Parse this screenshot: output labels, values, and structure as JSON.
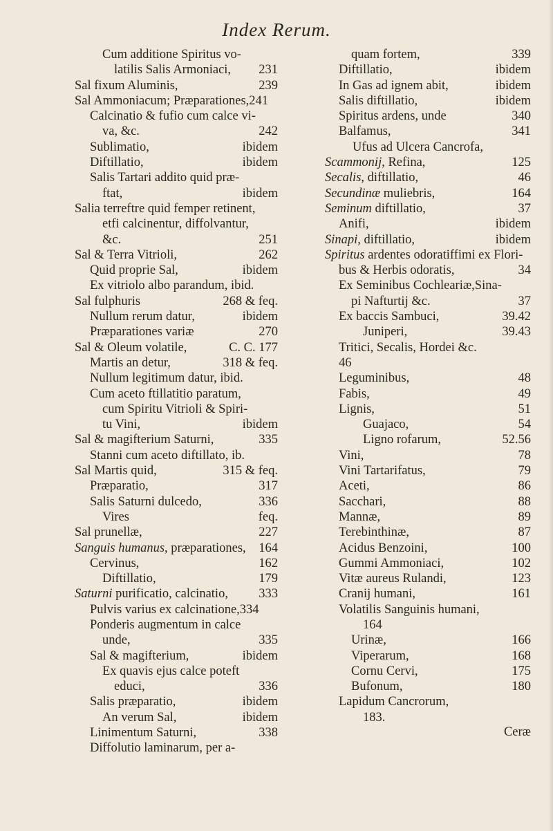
{
  "header": {
    "title": "Index Rerum."
  },
  "left": [
    {
      "t": "Cum additione Spiritus vo-"
    },
    {
      "t": "latilis Salis Armoniaci,",
      "p": "231"
    },
    {
      "t": "Sal fixum Aluminis,",
      "p": "239"
    },
    {
      "t": "Sal Ammoniacum; Præparationes,241"
    },
    {
      "t": "Calcinatio & fufio cum calce vi-"
    },
    {
      "t": "va, &c.",
      "p": "242"
    },
    {
      "t": "Sublimatio,",
      "p": "ibidem"
    },
    {
      "t": "Diftillatio,",
      "p": "ibidem"
    },
    {
      "t": "Salis Tartari addito quid præ-"
    },
    {
      "t": "ftat,",
      "p": "ibidem"
    },
    {
      "t": "Salia terreftre quid femper retinent,"
    },
    {
      "t": "etfi calcinentur, diffolvantur,"
    },
    {
      "t": "&c.",
      "p": "251"
    },
    {
      "t": "Sal & Terra Vitrioli,",
      "p": "262"
    },
    {
      "t": "Quid proprie Sal,",
      "p": "ibidem"
    },
    {
      "t": "Ex vitriolo albo parandum, ibid."
    },
    {
      "t": "Sal fulphuris",
      "p": "268 & feq."
    },
    {
      "t": "Nullum rerum datur,",
      "p": "ibidem"
    },
    {
      "t": "Præparationes variæ",
      "p": "270"
    },
    {
      "t": "Sal & Oleum volatile,",
      "p": "C. C. 177"
    },
    {
      "t": "Martis an detur,",
      "p": "318 & feq."
    },
    {
      "t": "Nullum legitimum datur, ibid."
    },
    {
      "t": "Cum aceto ftillatitio paratum,"
    },
    {
      "t": "cum Spiritu Vitrioli & Spiri-"
    },
    {
      "t": "tu Vini,",
      "p": "ibidem"
    },
    {
      "t": "Sal & magifterium Saturni,",
      "p": "335"
    },
    {
      "t": "Stanni cum aceto diftillato, ib."
    },
    {
      "t": "Sal Martis quid,",
      "p": "315 & feq."
    },
    {
      "t": "Præparatio,",
      "p": "317"
    },
    {
      "t": "Salis Saturni dulcedo,",
      "p": "336"
    },
    {
      "t": "Vires",
      "p": "feq."
    },
    {
      "t": "Sal prunellæ,",
      "p": "227"
    },
    {
      "em": "Sanguis humanus",
      "t": ", præparationes,",
      "p": "164"
    },
    {
      "t": "Cervinus,",
      "p": "162"
    },
    {
      "t": "Diftillatio,",
      "p": "179"
    },
    {
      "em": "Saturni",
      "t": " purificatio, calcinatio,",
      "p": "333"
    },
    {
      "t": "Pulvis varius ex calcinatione,334"
    },
    {
      "t": "Ponderis augmentum in calce"
    },
    {
      "t": "unde,",
      "p": "335"
    },
    {
      "t": "Sal & magifterium,",
      "p": "ibidem"
    },
    {
      "t": "Ex quavis ejus calce poteft"
    },
    {
      "t": "educi,",
      "p": "336"
    },
    {
      "t": "Salis præparatio,",
      "p": "ibidem"
    },
    {
      "t": "An verum Sal,",
      "p": "ibidem"
    },
    {
      "t": "Linimentum Saturni,",
      "p": "338"
    },
    {
      "t": "Diffolutio laminarum, per a-"
    }
  ],
  "right": [
    {
      "t": "quam fortem,",
      "p": "339"
    },
    {
      "t": "Diftillatio,",
      "p": "ibidem"
    },
    {
      "t": "In Gas ad ignem abit,",
      "p": "ibidem"
    },
    {
      "t": "Salis diftillatio,",
      "p": "ibidem"
    },
    {
      "t": "Spiritus ardens, unde",
      "p": "340"
    },
    {
      "t": "Balfamus,",
      "p": "341"
    },
    {
      "t": "Ufus ad Ulcera Cancrofa,"
    },
    {
      "em": "Scammonij",
      "t": ", Refina,",
      "p": "125"
    },
    {
      "em": "Secalis",
      "t": ", diftillatio,",
      "p": "46"
    },
    {
      "em": "Secundinæ",
      "t": " muliebris,",
      "p": "164"
    },
    {
      "em": "Seminum",
      "t": " diftillatio,",
      "p": "37"
    },
    {
      "t": "Anifi,",
      "p": "ibidem"
    },
    {
      "em": "Sinapi",
      "t": ", diftillatio,",
      "p": "ibidem"
    },
    {
      "em": "Spiritus",
      "t": " ardentes odoratiffimi ex Flori-"
    },
    {
      "t": "bus & Herbis odoratis,",
      "p": "34"
    },
    {
      "t": "Ex Seminibus Cochleariæ,Sina-"
    },
    {
      "t": "pi Nafturtij &c.",
      "p": "37"
    },
    {
      "t": "Ex baccis Sambuci,",
      "p": "39.42"
    },
    {
      "t": "Juniperi,",
      "p": "39.43"
    },
    {
      "t": "Tritici, Secalis, Hordei &c."
    },
    {
      "t": "46"
    },
    {
      "t": "Leguminibus,",
      "p": "48"
    },
    {
      "t": "Fabis,",
      "p": "49"
    },
    {
      "t": "Lignis,",
      "p": "51"
    },
    {
      "t": "Guajaco,",
      "p": "54"
    },
    {
      "t": "Ligno rofarum,",
      "p": "52.56"
    },
    {
      "t": "Vini,",
      "p": "78"
    },
    {
      "t": "Vini Tartarifatus,",
      "p": "79"
    },
    {
      "t": "Aceti,",
      "p": "86"
    },
    {
      "t": "Sacchari,",
      "p": "88"
    },
    {
      "t": "Mannæ,",
      "p": "89"
    },
    {
      "t": "Terebinthinæ,",
      "p": "87"
    },
    {
      "t": "Acidus Benzoini,",
      "p": "100"
    },
    {
      "t": "Gummi Ammoniaci,",
      "p": "102"
    },
    {
      "t": "Vitæ aureus Rulandi,",
      "p": "123"
    },
    {
      "t": "Cranij humani,",
      "p": "161"
    },
    {
      "t": "Volatilis Sanguinis humani,"
    },
    {
      "t": "164"
    },
    {
      "t": "Urinæ,",
      "p": "166"
    },
    {
      "t": "Viperarum,",
      "p": "168"
    },
    {
      "t": "Cornu Cervi,",
      "p": "175"
    },
    {
      "t": "Bufonum,",
      "p": "180"
    },
    {
      "t": "Lapidum Cancrorum,"
    },
    {
      "t": "183."
    }
  ],
  "catchword": "Ceræ"
}
